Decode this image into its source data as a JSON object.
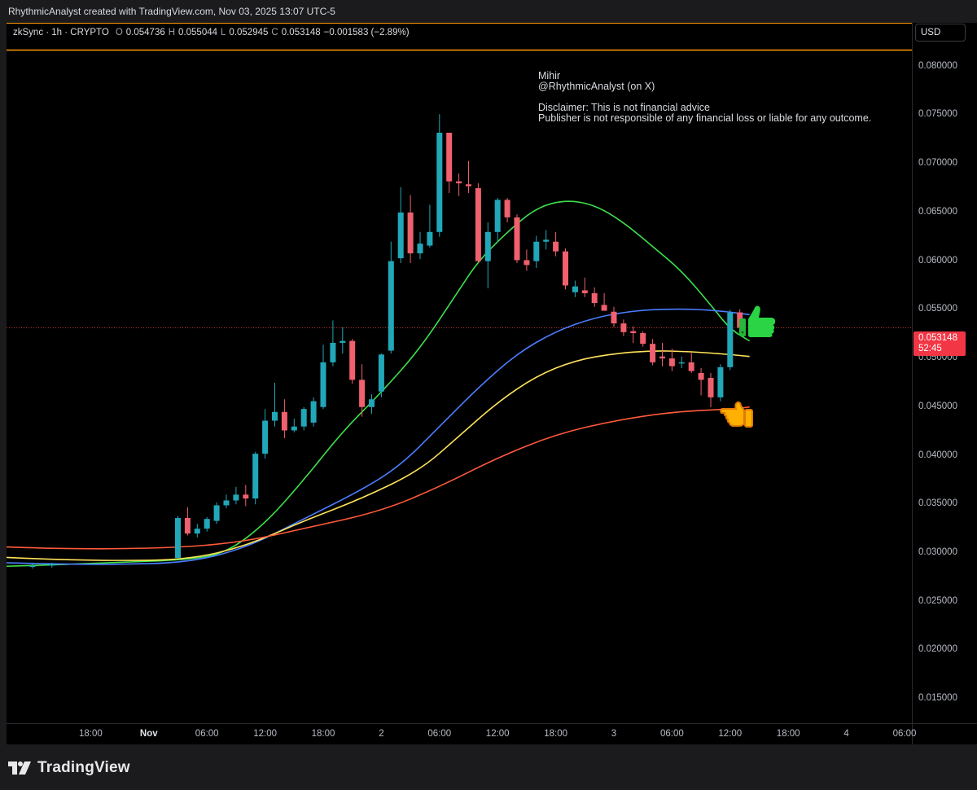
{
  "header": {
    "text": "RhythmicAnalyst created with TradingView.com, Nov 03, 2025 13:07 UTC-5"
  },
  "legend": {
    "symbol": "zkSync · 1h · CRYPTO",
    "open_label": "O",
    "open": "0.054736",
    "high_label": "H",
    "high": "0.055044",
    "low_label": "L",
    "low": "0.052945",
    "close_label": "C",
    "close": "0.053148",
    "change": "−0.001583 (−2.89%)"
  },
  "currency_button": "USD",
  "note": {
    "line1": "Mihir",
    "line2": "@RhythmicAnalyst (on X)",
    "line3": "Disclaimer: This is not financial advice",
    "line4": "Publisher is not responsible of any financial loss or liable for any outcome."
  },
  "price_tag": {
    "price": "0.053148",
    "countdown": "52:45"
  },
  "footer": {
    "brand": "TradingView"
  },
  "colors": {
    "up": "#22a7b8",
    "down": "#f0606e",
    "green_ma": "#3ee04a",
    "blue_ma": "#4a7dff",
    "yellow_ma": "#ffe35a",
    "red_ma": "#ff5a3a",
    "orange_line": "#ff9800",
    "price_tag": "#f23645"
  },
  "icons": {
    "thumbs_up": "thumbs-up-emoji",
    "pointing_hand": "backhand-pointing-left-emoji"
  },
  "chart_data": {
    "type": "candlestick",
    "ylim": [
      0.0125,
      0.0845
    ],
    "y_ticks": [
      "0.080000",
      "0.075000",
      "0.070000",
      "0.065000",
      "0.060000",
      "0.055000",
      "0.050000",
      "0.045000",
      "0.040000",
      "0.035000",
      "0.030000",
      "0.025000",
      "0.020000",
      "0.015000"
    ],
    "x_ticks": [
      {
        "label": "18:00",
        "bold": false
      },
      {
        "label": "Nov",
        "bold": true
      },
      {
        "label": "06:00",
        "bold": false
      },
      {
        "label": "12:00",
        "bold": false
      },
      {
        "label": "18:00",
        "bold": false
      },
      {
        "label": "2",
        "bold": false
      },
      {
        "label": "06:00",
        "bold": false
      },
      {
        "label": "12:00",
        "bold": false
      },
      {
        "label": "18:00",
        "bold": false
      },
      {
        "label": "3",
        "bold": false
      },
      {
        "label": "06:00",
        "bold": false
      },
      {
        "label": "12:00",
        "bold": false
      },
      {
        "label": "18:00",
        "bold": false
      },
      {
        "label": "4",
        "bold": false
      },
      {
        "label": "06:00",
        "bold": false
      }
    ],
    "x_tick_hours": [
      18,
      24,
      30,
      36,
      42,
      48,
      54,
      60,
      66,
      72,
      78,
      84,
      90,
      96,
      102
    ],
    "last_price": 0.053148,
    "resistance_level": 0.0817,
    "candles": [
      {
        "h": 12,
        "o": 0.0286,
        "hi": 0.029,
        "l": 0.0284,
        "c": 0.0287
      },
      {
        "h": 14,
        "o": 0.0287,
        "hi": 0.029,
        "l": 0.0285,
        "c": 0.0289
      },
      {
        "h": 27,
        "o": 0.0295,
        "hi": 0.0338,
        "l": 0.0294,
        "c": 0.0336
      },
      {
        "h": 28,
        "o": 0.0336,
        "hi": 0.0347,
        "l": 0.0318,
        "c": 0.032
      },
      {
        "h": 29,
        "o": 0.032,
        "hi": 0.033,
        "l": 0.0316,
        "c": 0.0325
      },
      {
        "h": 30,
        "o": 0.0325,
        "hi": 0.0337,
        "l": 0.0322,
        "c": 0.0335
      },
      {
        "h": 31,
        "o": 0.0333,
        "hi": 0.0352,
        "l": 0.033,
        "c": 0.0349
      },
      {
        "h": 32,
        "o": 0.0349,
        "hi": 0.036,
        "l": 0.0346,
        "c": 0.0354
      },
      {
        "h": 33,
        "o": 0.0354,
        "hi": 0.0368,
        "l": 0.035,
        "c": 0.036
      },
      {
        "h": 34,
        "o": 0.036,
        "hi": 0.037,
        "l": 0.0348,
        "c": 0.0356
      },
      {
        "h": 35,
        "o": 0.0356,
        "hi": 0.0404,
        "l": 0.035,
        "c": 0.0402
      },
      {
        "h": 36,
        "o": 0.0402,
        "hi": 0.0448,
        "l": 0.0397,
        "c": 0.0436
      },
      {
        "h": 37,
        "o": 0.0436,
        "hi": 0.0475,
        "l": 0.043,
        "c": 0.0445
      },
      {
        "h": 38,
        "o": 0.0445,
        "hi": 0.0458,
        "l": 0.0418,
        "c": 0.0426
      },
      {
        "h": 39,
        "o": 0.0426,
        "hi": 0.0438,
        "l": 0.0424,
        "c": 0.043
      },
      {
        "h": 40,
        "o": 0.043,
        "hi": 0.045,
        "l": 0.0426,
        "c": 0.0448
      },
      {
        "h": 41,
        "o": 0.0434,
        "hi": 0.046,
        "l": 0.043,
        "c": 0.0456
      },
      {
        "h": 42,
        "o": 0.045,
        "hi": 0.0514,
        "l": 0.0448,
        "c": 0.0496
      },
      {
        "h": 43,
        "o": 0.0496,
        "hi": 0.0539,
        "l": 0.0492,
        "c": 0.0516
      },
      {
        "h": 44,
        "o": 0.0516,
        "hi": 0.0532,
        "l": 0.0505,
        "c": 0.0518
      },
      {
        "h": 45,
        "o": 0.0518,
        "hi": 0.052,
        "l": 0.0474,
        "c": 0.0478
      },
      {
        "h": 46,
        "o": 0.0478,
        "hi": 0.0494,
        "l": 0.044,
        "c": 0.045
      },
      {
        "h": 47,
        "o": 0.045,
        "hi": 0.0463,
        "l": 0.0443,
        "c": 0.0458
      },
      {
        "h": 48,
        "o": 0.0466,
        "hi": 0.0505,
        "l": 0.046,
        "c": 0.0504
      },
      {
        "h": 49,
        "o": 0.0508,
        "hi": 0.062,
        "l": 0.0505,
        "c": 0.06
      },
      {
        "h": 50,
        "o": 0.0603,
        "hi": 0.0676,
        "l": 0.0598,
        "c": 0.065
      },
      {
        "h": 51,
        "o": 0.065,
        "hi": 0.0668,
        "l": 0.0598,
        "c": 0.0608
      },
      {
        "h": 52,
        "o": 0.0608,
        "hi": 0.063,
        "l": 0.0602,
        "c": 0.0618
      },
      {
        "h": 53,
        "o": 0.0616,
        "hi": 0.0658,
        "l": 0.0614,
        "c": 0.063
      },
      {
        "h": 54,
        "o": 0.063,
        "hi": 0.0751,
        "l": 0.0625,
        "c": 0.0732
      },
      {
        "h": 55,
        "o": 0.0732,
        "hi": 0.0727,
        "l": 0.067,
        "c": 0.0682
      },
      {
        "h": 56,
        "o": 0.0682,
        "hi": 0.069,
        "l": 0.0667,
        "c": 0.068
      },
      {
        "h": 57,
        "o": 0.0679,
        "hi": 0.0703,
        "l": 0.067,
        "c": 0.0677
      },
      {
        "h": 58,
        "o": 0.0675,
        "hi": 0.068,
        "l": 0.0598,
        "c": 0.06
      },
      {
        "h": 59,
        "o": 0.06,
        "hi": 0.064,
        "l": 0.0572,
        "c": 0.063
      },
      {
        "h": 60,
        "o": 0.063,
        "hi": 0.0665,
        "l": 0.062,
        "c": 0.0663
      },
      {
        "h": 61,
        "o": 0.0663,
        "hi": 0.0665,
        "l": 0.064,
        "c": 0.0645
      },
      {
        "h": 62,
        "o": 0.0645,
        "hi": 0.0648,
        "l": 0.0598,
        "c": 0.0601
      },
      {
        "h": 63,
        "o": 0.0601,
        "hi": 0.0612,
        "l": 0.059,
        "c": 0.0596
      },
      {
        "h": 64,
        "o": 0.06,
        "hi": 0.0626,
        "l": 0.0593,
        "c": 0.062
      },
      {
        "h": 65,
        "o": 0.062,
        "hi": 0.0632,
        "l": 0.0612,
        "c": 0.0622
      },
      {
        "h": 66,
        "o": 0.062,
        "hi": 0.063,
        "l": 0.0605,
        "c": 0.061
      },
      {
        "h": 67,
        "o": 0.061,
        "hi": 0.0613,
        "l": 0.0571,
        "c": 0.0575
      },
      {
        "h": 68,
        "o": 0.0568,
        "hi": 0.058,
        "l": 0.0563,
        "c": 0.0574
      },
      {
        "h": 69,
        "o": 0.057,
        "hi": 0.0583,
        "l": 0.0563,
        "c": 0.0567
      },
      {
        "h": 70,
        "o": 0.0567,
        "hi": 0.0573,
        "l": 0.0553,
        "c": 0.0557
      },
      {
        "h": 71,
        "o": 0.0555,
        "hi": 0.0567,
        "l": 0.055,
        "c": 0.0549
      },
      {
        "h": 72,
        "o": 0.0548,
        "hi": 0.0553,
        "l": 0.0532,
        "c": 0.0536
      },
      {
        "h": 73,
        "o": 0.0536,
        "hi": 0.054,
        "l": 0.0523,
        "c": 0.0527
      },
      {
        "h": 74,
        "o": 0.0528,
        "hi": 0.0533,
        "l": 0.0516,
        "c": 0.0526
      },
      {
        "h": 75,
        "o": 0.0526,
        "hi": 0.0528,
        "l": 0.0512,
        "c": 0.0515
      },
      {
        "h": 76,
        "o": 0.0515,
        "hi": 0.052,
        "l": 0.0493,
        "c": 0.0496
      },
      {
        "h": 77,
        "o": 0.0502,
        "hi": 0.0516,
        "l": 0.0492,
        "c": 0.05
      },
      {
        "h": 78,
        "o": 0.05,
        "hi": 0.051,
        "l": 0.0487,
        "c": 0.0492
      },
      {
        "h": 79,
        "o": 0.0495,
        "hi": 0.0502,
        "l": 0.049,
        "c": 0.0496
      },
      {
        "h": 80,
        "o": 0.0496,
        "hi": 0.0506,
        "l": 0.0485,
        "c": 0.0487
      },
      {
        "h": 81,
        "o": 0.0485,
        "hi": 0.049,
        "l": 0.0462,
        "c": 0.0478
      },
      {
        "h": 82,
        "o": 0.048,
        "hi": 0.0485,
        "l": 0.045,
        "c": 0.046
      },
      {
        "h": 83,
        "o": 0.046,
        "hi": 0.0494,
        "l": 0.0456,
        "c": 0.0491
      },
      {
        "h": 84,
        "o": 0.0491,
        "hi": 0.055,
        "l": 0.0488,
        "c": 0.0547
      },
      {
        "h": 85,
        "o": 0.054736,
        "hi": 0.055044,
        "l": 0.052945,
        "c": 0.053148
      }
    ],
    "moving_averages": [
      {
        "color": "#3ee04a",
        "points": [
          [
            0,
            0.0284
          ],
          [
            12,
            0.0287
          ],
          [
            20,
            0.029
          ],
          [
            28,
            0.0293
          ],
          [
            32,
            0.03
          ],
          [
            36,
            0.033
          ],
          [
            40,
            0.0375
          ],
          [
            44,
            0.0425
          ],
          [
            48,
            0.0465
          ],
          [
            52,
            0.051
          ],
          [
            56,
            0.057
          ],
          [
            58,
            0.06
          ],
          [
            61,
            0.063
          ],
          [
            64,
            0.0655
          ],
          [
            67,
            0.0663
          ],
          [
            70,
            0.0658
          ],
          [
            73,
            0.064
          ],
          [
            76,
            0.0615
          ],
          [
            79,
            0.059
          ],
          [
            82,
            0.0555
          ],
          [
            84,
            0.053
          ],
          [
            86,
            0.0518
          ]
        ]
      },
      {
        "color": "#4a7dff",
        "points": [
          [
            0,
            0.0293
          ],
          [
            12,
            0.0289
          ],
          [
            20,
            0.0288
          ],
          [
            28,
            0.029
          ],
          [
            34,
            0.0305
          ],
          [
            40,
            0.0335
          ],
          [
            46,
            0.0365
          ],
          [
            50,
            0.039
          ],
          [
            54,
            0.043
          ],
          [
            58,
            0.047
          ],
          [
            62,
            0.0505
          ],
          [
            66,
            0.0528
          ],
          [
            70,
            0.0542
          ],
          [
            74,
            0.0549
          ],
          [
            78,
            0.0551
          ],
          [
            82,
            0.055
          ],
          [
            86,
            0.0545
          ]
        ]
      },
      {
        "color": "#ffe35a",
        "points": [
          [
            0,
            0.03
          ],
          [
            12,
            0.0294
          ],
          [
            20,
            0.0292
          ],
          [
            28,
            0.0293
          ],
          [
            34,
            0.0307
          ],
          [
            40,
            0.0333
          ],
          [
            46,
            0.0356
          ],
          [
            52,
            0.0385
          ],
          [
            56,
            0.042
          ],
          [
            60,
            0.0455
          ],
          [
            64,
            0.0482
          ],
          [
            68,
            0.0498
          ],
          [
            72,
            0.0505
          ],
          [
            76,
            0.0508
          ],
          [
            80,
            0.0507
          ],
          [
            84,
            0.0504
          ],
          [
            86,
            0.0502
          ]
        ]
      },
      {
        "color": "#ff5a3a",
        "points": [
          [
            0,
            0.031
          ],
          [
            12,
            0.0305
          ],
          [
            20,
            0.0304
          ],
          [
            28,
            0.0306
          ],
          [
            34,
            0.0312
          ],
          [
            40,
            0.0325
          ],
          [
            48,
            0.0343
          ],
          [
            54,
            0.0368
          ],
          [
            60,
            0.0398
          ],
          [
            66,
            0.0422
          ],
          [
            72,
            0.0436
          ],
          [
            78,
            0.0445
          ],
          [
            84,
            0.0448
          ],
          [
            86,
            0.045
          ]
        ]
      }
    ]
  }
}
